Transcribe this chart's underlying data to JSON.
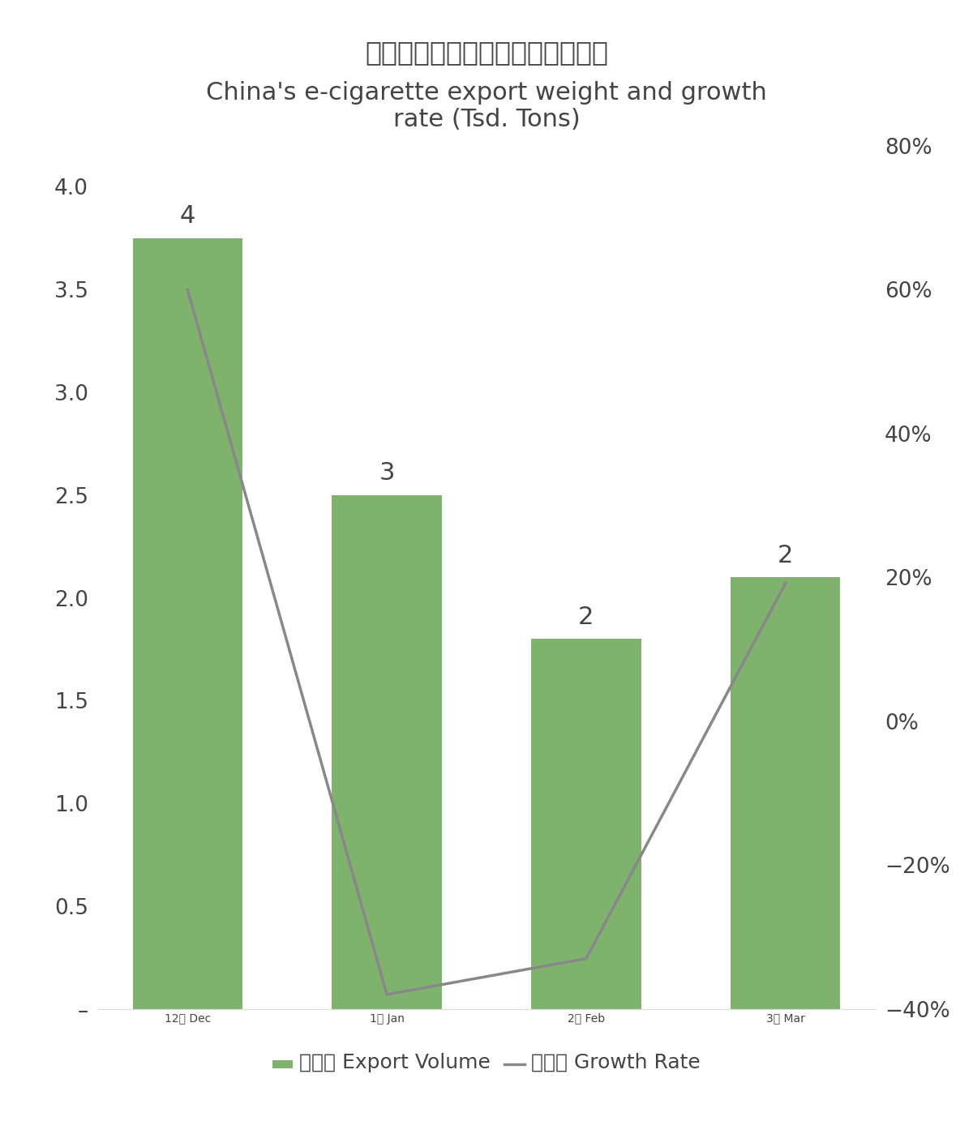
{
  "title_cn": "中国电子烟出口量及增速（千吨）",
  "title_en": "China's e-cigarette export weight and growth\nrate (Tsd. Tons)",
  "categories": [
    "12月 Dec",
    "1月 Jan",
    "2月 Feb",
    "3月 Mar"
  ],
  "bar_values": [
    3.75,
    2.5,
    1.8,
    2.1
  ],
  "bar_labels": [
    "4",
    "3",
    "2",
    "2"
  ],
  "growth_values": [
    0.6,
    -0.38,
    -0.33,
    0.1919
  ],
  "bar_color": "#7EB26D",
  "line_color": "#888888",
  "ylim_left": [
    0,
    4.2
  ],
  "ylim_right": [
    -0.4,
    0.8
  ],
  "yticks_left": [
    0.0,
    0.5,
    1.0,
    1.5,
    2.0,
    2.5,
    3.0,
    3.5,
    4.0
  ],
  "yticks_right": [
    -0.4,
    -0.2,
    0.0,
    0.2,
    0.4,
    0.6,
    0.8
  ],
  "ytick_labels_left": [
    "–",
    "0.5",
    "1.0",
    "1.5",
    "2.0",
    "2.5",
    "3.0",
    "3.5",
    "4.0"
  ],
  "ytick_labels_right": [
    "−40%",
    "−20%",
    "0%",
    "20%",
    "40%",
    "60%",
    "80%"
  ],
  "legend_bar": "出口量 Export Volume",
  "legend_line": "增长率 Growth Rate",
  "bg_color": "#FFFFFF",
  "title_fontsize_cn": 24,
  "title_fontsize_en": 22,
  "tick_fontsize": 19,
  "bar_label_fontsize": 22,
  "legend_fontsize": 18,
  "text_color": "#444444"
}
